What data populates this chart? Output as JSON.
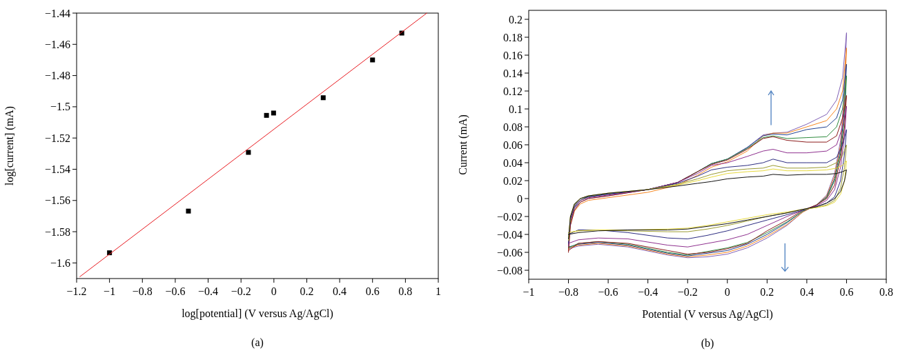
{
  "chart_data": [
    {
      "type": "scatter",
      "xlabel": "log[potential] (V versus Ag/AgCl)",
      "ylabel": "log[current] (mA)",
      "annotations": [
        "(a)"
      ],
      "xlim": [
        -1.2,
        1
      ],
      "ylim": [
        -1.61,
        -1.44
      ],
      "xticks": [
        {
          "value": -1.2,
          "label": "−1.2"
        },
        {
          "value": -1,
          "label": "−1"
        },
        {
          "value": -0.8,
          "label": "−0.8"
        },
        {
          "value": -0.6,
          "label": "−0.6"
        },
        {
          "value": -0.4,
          "label": "−0.4"
        },
        {
          "value": -0.2,
          "label": "−0.2"
        },
        0,
        0.2,
        0.4,
        0.6,
        0.8,
        1
      ],
      "yticks": [
        {
          "value": -1.6,
          "label": "−1.6"
        },
        {
          "value": -1.58,
          "label": "−1.58"
        },
        {
          "value": -1.56,
          "label": "−1.56"
        },
        {
          "value": -1.54,
          "label": "−1.54"
        },
        {
          "value": -1.52,
          "label": "−1.52"
        },
        {
          "value": -1.5,
          "label": "−1.5"
        },
        {
          "value": -1.48,
          "label": "−1.48"
        },
        {
          "value": -1.46,
          "label": "−1.46"
        },
        {
          "value": -1.44,
          "label": "−1.44"
        }
      ],
      "series": [
        {
          "marker": "square",
          "color": "#000000",
          "x": [
            -1,
            -0.52,
            -0.155,
            -0.045,
            -0.002,
            0.3,
            0.6,
            0.778
          ],
          "values": [
            -1.5935,
            -1.5668,
            -1.5292,
            -1.5055,
            -1.504,
            -1.4942,
            -1.47,
            -1.4528
          ]
        },
        {
          "type": "line",
          "color": "#e8191f",
          "x": [
            -1.18,
            0.93
          ],
          "values": [
            -1.6088,
            -1.44
          ]
        }
      ]
    },
    {
      "type": "line",
      "xlabel": "Potential (V versus Ag/AgCl)",
      "ylabel": "Current (mA)",
      "annotations": [
        "(b)"
      ],
      "marker": "none",
      "xlim": [
        -1,
        0.8
      ],
      "ylim": [
        -0.09,
        0.21
      ],
      "xticks": [
        {
          "value": -1,
          "label": "−1"
        },
        {
          "value": -0.8,
          "label": "−0.8"
        },
        {
          "value": -0.6,
          "label": "−0.6"
        },
        {
          "value": -0.4,
          "label": "−0.4"
        },
        {
          "value": -0.2,
          "label": "−0.2"
        },
        0,
        0.2,
        0.4,
        0.6,
        0.8
      ],
      "yticks": [
        {
          "value": -0.08,
          "label": "−0.08"
        },
        {
          "value": -0.06,
          "label": "−0.06"
        },
        {
          "value": -0.04,
          "label": "−0.04"
        },
        {
          "value": -0.02,
          "label": "−0.02"
        },
        0,
        0.02,
        0.04,
        0.06,
        0.08,
        0.1,
        0.12,
        0.14,
        0.16,
        0.18,
        0.2
      ],
      "x": [
        -0.8,
        -0.79,
        -0.77,
        -0.74,
        -0.7,
        -0.6,
        -0.4,
        -0.25,
        -0.15,
        -0.08,
        0,
        0.1,
        0.18,
        0.23,
        0.3,
        0.4,
        0.5,
        0.55,
        0.58,
        0.6,
        0.6,
        0.59,
        0.57,
        0.54,
        0.5,
        0.45,
        0.38,
        0.3,
        0.2,
        0.1,
        0,
        -0.1,
        -0.2,
        -0.3,
        -0.5,
        -0.65,
        -0.75,
        -0.8
      ],
      "series": [
        {
          "color": "#7f5fb5",
          "values": [
            -0.055,
            -0.026,
            -0.011,
            -0.004,
            0.0,
            0.003,
            0.01,
            0.018,
            0.03,
            0.039,
            0.044,
            0.057,
            0.071,
            0.073,
            0.074,
            0.083,
            0.094,
            0.11,
            0.135,
            0.185,
            0.185,
            0.12,
            0.065,
            0.028,
            0.004,
            -0.007,
            -0.015,
            -0.03,
            -0.044,
            -0.055,
            -0.062,
            -0.065,
            -0.066,
            -0.063,
            -0.054,
            -0.051,
            -0.053,
            -0.056
          ]
        },
        {
          "color": "#f7861f",
          "values": [
            -0.058,
            -0.029,
            -0.014,
            -0.006,
            -0.002,
            0.001,
            0.007,
            0.015,
            0.026,
            0.035,
            0.041,
            0.053,
            0.07,
            0.073,
            0.073,
            0.08,
            0.087,
            0.1,
            0.12,
            0.168,
            0.168,
            0.11,
            0.06,
            0.025,
            0.003,
            -0.007,
            -0.015,
            -0.029,
            -0.042,
            -0.053,
            -0.06,
            -0.063,
            -0.065,
            -0.062,
            -0.053,
            -0.05,
            -0.052,
            -0.055
          ]
        },
        {
          "color": "#1f3f8f",
          "values": [
            -0.052,
            -0.023,
            -0.009,
            -0.002,
            0.002,
            0.005,
            0.01,
            0.018,
            0.03,
            0.039,
            0.044,
            0.057,
            0.07,
            0.072,
            0.071,
            0.077,
            0.08,
            0.09,
            0.11,
            0.15,
            0.15,
            0.1,
            0.055,
            0.022,
            0.002,
            -0.007,
            -0.014,
            -0.027,
            -0.04,
            -0.051,
            -0.058,
            -0.061,
            -0.064,
            -0.061,
            -0.052,
            -0.049,
            -0.051,
            -0.054
          ]
        },
        {
          "color": "#2e8b3e",
          "values": [
            -0.054,
            -0.025,
            -0.01,
            -0.002,
            0.002,
            0.005,
            0.01,
            0.018,
            0.03,
            0.039,
            0.044,
            0.056,
            0.068,
            0.07,
            0.067,
            0.068,
            0.069,
            0.08,
            0.1,
            0.137,
            0.137,
            0.09,
            0.05,
            0.02,
            0.001,
            -0.007,
            -0.014,
            -0.026,
            -0.038,
            -0.049,
            -0.055,
            -0.059,
            -0.063,
            -0.06,
            -0.051,
            -0.048,
            -0.05,
            -0.055
          ]
        },
        {
          "color": "#8b1a1a",
          "values": [
            -0.06,
            -0.03,
            -0.013,
            -0.004,
            0.0,
            0.003,
            0.01,
            0.018,
            0.03,
            0.038,
            0.043,
            0.055,
            0.067,
            0.069,
            0.065,
            0.063,
            0.063,
            0.07,
            0.09,
            0.115,
            0.115,
            0.08,
            0.045,
            0.015,
            0.0,
            -0.007,
            -0.013,
            -0.024,
            -0.036,
            -0.05,
            -0.056,
            -0.06,
            -0.062,
            -0.058,
            -0.05,
            -0.048,
            -0.05,
            -0.058
          ]
        },
        {
          "color": "#8e2f8e",
          "values": [
            -0.053,
            -0.025,
            -0.01,
            -0.002,
            0.001,
            0.004,
            0.01,
            0.018,
            0.028,
            0.037,
            0.04,
            0.047,
            0.053,
            0.055,
            0.051,
            0.051,
            0.053,
            0.06,
            0.08,
            0.103,
            0.103,
            0.07,
            0.035,
            0.01,
            -0.002,
            -0.008,
            -0.013,
            -0.02,
            -0.03,
            -0.04,
            -0.046,
            -0.05,
            -0.054,
            -0.052,
            -0.045,
            -0.044,
            -0.046,
            -0.05
          ]
        },
        {
          "color": "#2b2b80",
          "values": [
            -0.05,
            -0.022,
            -0.008,
            0.0,
            0.002,
            0.005,
            0.01,
            0.017,
            0.025,
            0.032,
            0.035,
            0.037,
            0.04,
            0.044,
            0.04,
            0.04,
            0.04,
            0.046,
            0.06,
            0.077,
            0.077,
            0.05,
            0.02,
            0.002,
            -0.005,
            -0.009,
            -0.013,
            -0.018,
            -0.024,
            -0.03,
            -0.036,
            -0.041,
            -0.045,
            -0.044,
            -0.038,
            -0.035,
            -0.035,
            -0.04
          ]
        },
        {
          "color": "#9a9a30",
          "values": [
            -0.047,
            -0.02,
            -0.007,
            0.0,
            0.003,
            0.006,
            0.01,
            0.016,
            0.022,
            0.027,
            0.031,
            0.033,
            0.034,
            0.037,
            0.034,
            0.034,
            0.035,
            0.04,
            0.048,
            0.06,
            0.06,
            0.035,
            0.012,
            -0.002,
            -0.007,
            -0.01,
            -0.012,
            -0.016,
            -0.02,
            -0.025,
            -0.03,
            -0.034,
            -0.037,
            -0.037,
            -0.036,
            -0.035,
            -0.036,
            -0.038
          ]
        },
        {
          "color": "#e6d83a",
          "values": [
            -0.046,
            -0.02,
            -0.006,
            0.0,
            0.003,
            0.006,
            0.01,
            0.015,
            0.02,
            0.024,
            0.028,
            0.03,
            0.031,
            0.033,
            0.031,
            0.031,
            0.032,
            0.034,
            0.037,
            0.042,
            0.042,
            0.02,
            0.005,
            -0.004,
            -0.008,
            -0.01,
            -0.012,
            -0.015,
            -0.018,
            -0.022,
            -0.026,
            -0.03,
            -0.033,
            -0.034,
            -0.035,
            -0.035,
            -0.036,
            -0.038
          ]
        },
        {
          "color": "#111111",
          "values": [
            -0.045,
            -0.02,
            -0.006,
            0.0,
            0.003,
            0.006,
            0.01,
            0.014,
            0.017,
            0.019,
            0.022,
            0.024,
            0.025,
            0.027,
            0.026,
            0.027,
            0.027,
            0.028,
            0.03,
            0.032,
            0.032,
            0.02,
            0.008,
            0.0,
            -0.005,
            -0.009,
            -0.012,
            -0.016,
            -0.02,
            -0.024,
            -0.028,
            -0.031,
            -0.034,
            -0.035,
            -0.035,
            -0.036,
            -0.038,
            -0.04
          ]
        }
      ]
    }
  ]
}
